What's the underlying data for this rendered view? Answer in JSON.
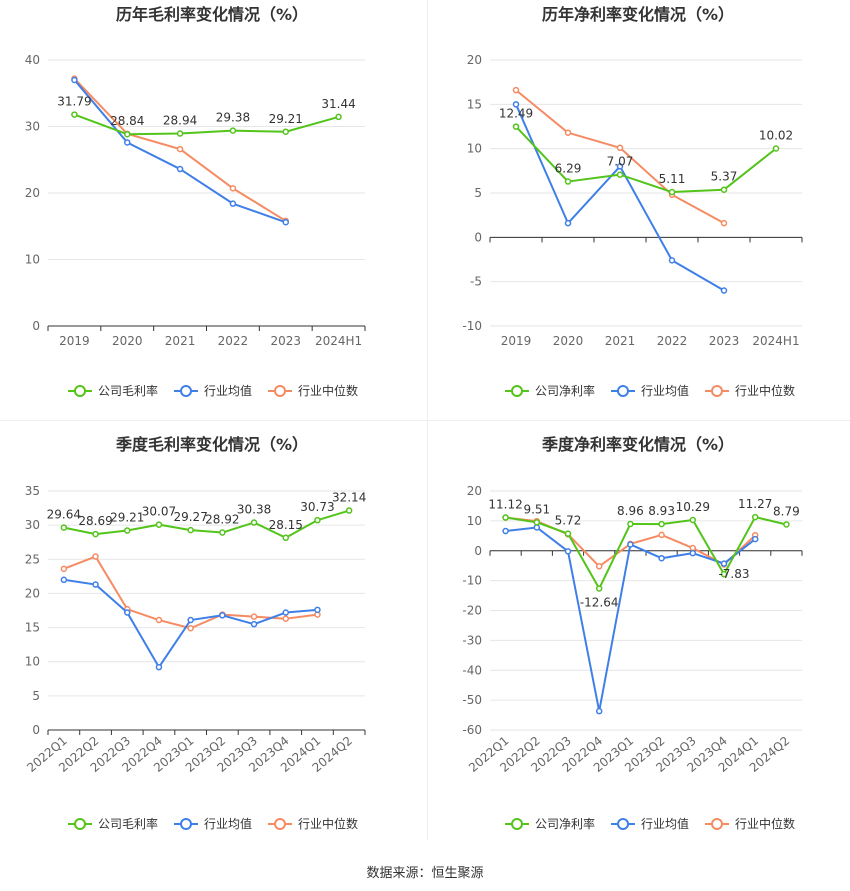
{
  "source": "数据来源：恒生聚源",
  "colors": {
    "company": "#52c41a",
    "industry_avg": "#3f7fe8",
    "industry_median": "#f58b63",
    "grid": "#e6e6e6",
    "axis": "#333333",
    "text": "#666666"
  },
  "chart_data": [
    {
      "type": "line",
      "title": "历年毛利率变化情况（%）",
      "categories": [
        "2019",
        "2020",
        "2021",
        "2022",
        "2023",
        "2024H1"
      ],
      "ylim": [
        0,
        40
      ],
      "yticks": [
        0,
        10,
        20,
        30,
        40
      ],
      "legend": "bottom",
      "series": [
        {
          "name": "公司毛利率",
          "key": "company",
          "values": [
            31.79,
            28.84,
            28.94,
            29.38,
            29.21,
            31.44
          ],
          "labels": [
            "31.79",
            "28.84",
            "28.94",
            "29.38",
            "29.21",
            "31.44"
          ]
        },
        {
          "name": "行业均值",
          "key": "industry_avg",
          "values": [
            37.0,
            27.6,
            23.6,
            18.4,
            15.6,
            null
          ]
        },
        {
          "name": "行业中位数",
          "key": "industry_median",
          "values": [
            37.2,
            28.9,
            26.6,
            20.7,
            15.8,
            null
          ]
        }
      ]
    },
    {
      "type": "line",
      "title": "历年净利率变化情况（%）",
      "categories": [
        "2019",
        "2020",
        "2021",
        "2022",
        "2023",
        "2024H1"
      ],
      "ylim": [
        -10,
        20
      ],
      "yticks": [
        -10,
        -5,
        0,
        5,
        10,
        15,
        20
      ],
      "legend": "bottom",
      "series": [
        {
          "name": "公司净利率",
          "key": "company",
          "values": [
            12.49,
            6.29,
            7.07,
            5.11,
            5.37,
            10.02
          ],
          "labels": [
            "12.49",
            "6.29",
            "7.07",
            "5.11",
            "5.37",
            "10.02"
          ]
        },
        {
          "name": "行业均值",
          "key": "industry_avg",
          "values": [
            15.0,
            1.6,
            8.0,
            -2.6,
            -6.0,
            null
          ]
        },
        {
          "name": "行业中位数",
          "key": "industry_median",
          "values": [
            16.6,
            11.8,
            10.1,
            4.8,
            1.6,
            null
          ]
        }
      ]
    },
    {
      "type": "line",
      "title": "季度毛利率变化情况（%）",
      "categories": [
        "2022Q1",
        "2022Q2",
        "2022Q3",
        "2022Q4",
        "2023Q1",
        "2023Q2",
        "2023Q3",
        "2023Q4",
        "2024Q1",
        "2024Q2"
      ],
      "ylim": [
        0,
        35
      ],
      "yticks": [
        0,
        5,
        10,
        15,
        20,
        25,
        30,
        35
      ],
      "legend": "bottom",
      "series": [
        {
          "name": "公司毛利率",
          "key": "company",
          "values": [
            29.64,
            28.69,
            29.21,
            30.07,
            29.27,
            28.92,
            30.38,
            28.15,
            30.73,
            32.14
          ],
          "labels": [
            "29.64",
            "28.69",
            "29.21",
            "30.07",
            "29.27",
            "28.92",
            "30.38",
            "28.15",
            "30.73",
            "32.14"
          ]
        },
        {
          "name": "行业均值",
          "key": "industry_avg",
          "values": [
            22.0,
            21.3,
            17.2,
            9.2,
            16.1,
            16.8,
            15.5,
            17.2,
            17.6,
            null
          ]
        },
        {
          "name": "行业中位数",
          "key": "industry_median",
          "values": [
            23.6,
            25.4,
            17.7,
            16.1,
            14.9,
            16.9,
            16.6,
            16.3,
            16.9,
            null
          ]
        }
      ]
    },
    {
      "type": "line",
      "title": "季度净利率变化情况（%）",
      "categories": [
        "2022Q1",
        "2022Q2",
        "2022Q3",
        "2022Q4",
        "2023Q1",
        "2023Q2",
        "2023Q3",
        "2023Q4",
        "2024Q1",
        "2024Q2"
      ],
      "ylim": [
        -60,
        20
      ],
      "yticks": [
        -60,
        -50,
        -40,
        -30,
        -20,
        -10,
        0,
        10,
        20
      ],
      "legend": "bottom",
      "series": [
        {
          "name": "公司净利率",
          "key": "company",
          "values": [
            11.12,
            9.51,
            5.72,
            -12.64,
            8.96,
            8.93,
            10.29,
            -7.83,
            11.27,
            8.79
          ],
          "labels": [
            "11.12",
            "9.51",
            "5.72",
            "-12.64",
            "8.96",
            "8.93",
            "10.29",
            "-7.83",
            "11.27",
            "8.79"
          ]
        },
        {
          "name": "行业均值",
          "key": "industry_avg",
          "values": [
            6.6,
            7.8,
            -0.2,
            -53.7,
            2.1,
            -2.5,
            -0.8,
            -4.3,
            3.9,
            null
          ]
        },
        {
          "name": "行业中位数",
          "key": "industry_median",
          "values": [
            11.1,
            9.9,
            5.5,
            -5.2,
            2.3,
            5.3,
            0.9,
            -4.6,
            5.2,
            null
          ]
        }
      ]
    }
  ]
}
